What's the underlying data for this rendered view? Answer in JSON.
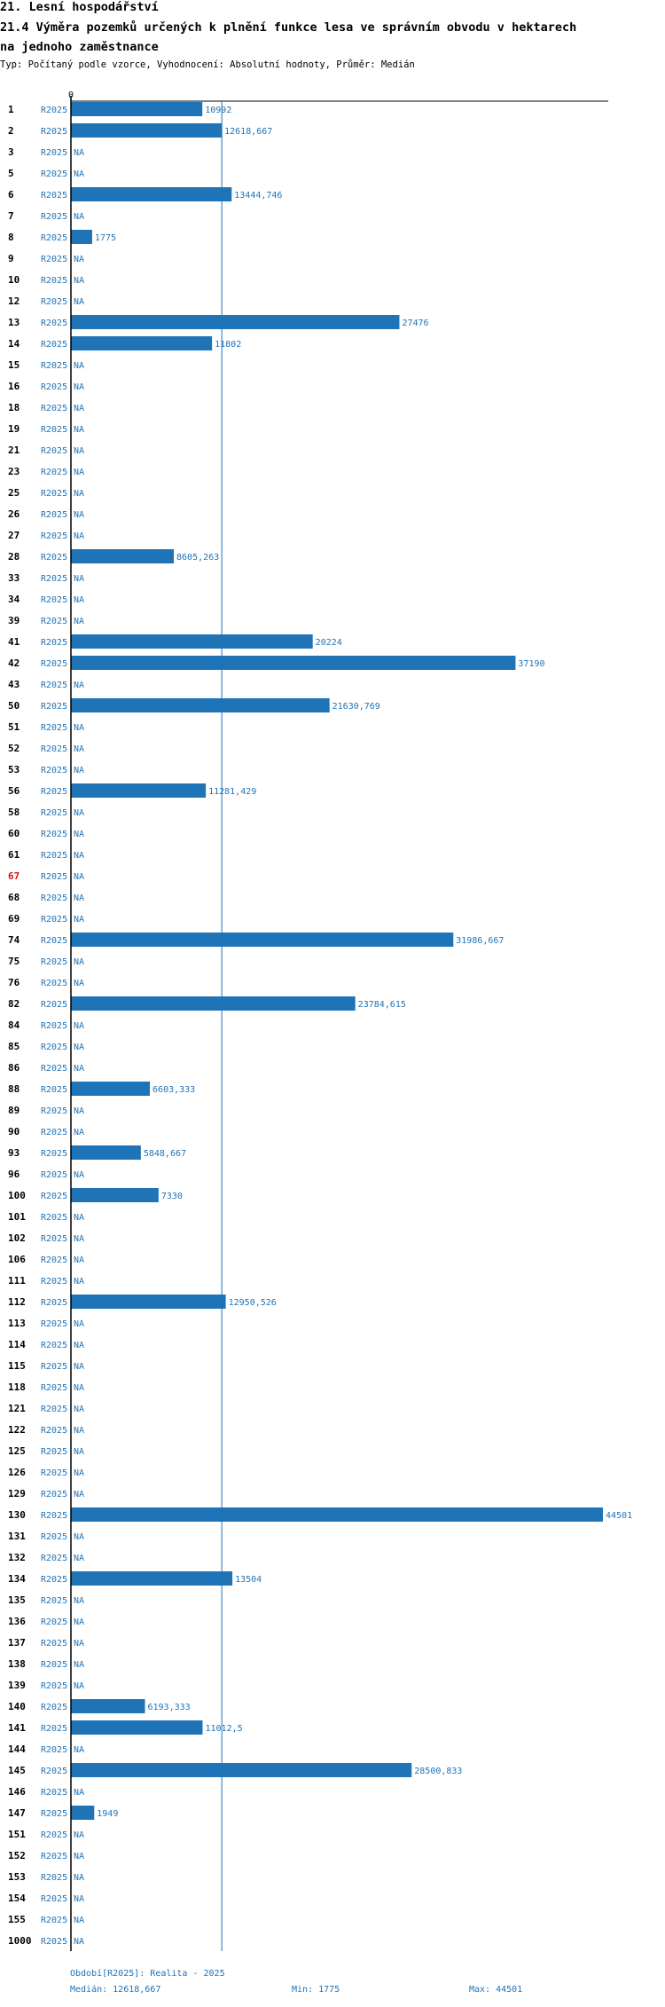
{
  "header": {
    "section": "21. Lesní hospodářství",
    "title_line1": "21.4 Výměra pozemků určených k plnění funkce lesa ve správním obvodu v hektarech",
    "title_line2": "na jednoho zaměstnance",
    "subtitle": "Typ: Počítaný podle vzorce, Vyhodnocení: Absolutní hodnoty, Průměr: Medián"
  },
  "colors": {
    "bar": "#1f73b7",
    "text": "#1f73b7",
    "highlight": "#dd1111",
    "axis": "#000000"
  },
  "chart_data": {
    "type": "bar",
    "orientation": "horizontal",
    "axis_zero_label": "0",
    "xlim": [
      0,
      44501
    ],
    "highlighted_category": "67",
    "series": [
      {
        "name": "R2025",
        "period_label": "R2025"
      }
    ],
    "categories": [
      "1",
      "2",
      "3",
      "5",
      "6",
      "7",
      "8",
      "9",
      "10",
      "12",
      "13",
      "14",
      "15",
      "16",
      "18",
      "19",
      "21",
      "23",
      "25",
      "26",
      "27",
      "28",
      "33",
      "34",
      "39",
      "41",
      "42",
      "43",
      "50",
      "51",
      "52",
      "53",
      "56",
      "58",
      "60",
      "61",
      "67",
      "68",
      "69",
      "74",
      "75",
      "76",
      "82",
      "84",
      "85",
      "86",
      "88",
      "89",
      "90",
      "93",
      "96",
      "100",
      "101",
      "102",
      "106",
      "111",
      "112",
      "113",
      "114",
      "115",
      "118",
      "121",
      "122",
      "125",
      "126",
      "129",
      "130",
      "131",
      "132",
      "134",
      "135",
      "136",
      "137",
      "138",
      "139",
      "140",
      "141",
      "144",
      "145",
      "146",
      "147",
      "151",
      "152",
      "153",
      "154",
      "155",
      "1000"
    ],
    "values": [
      10992,
      12618.667,
      null,
      null,
      13444.746,
      null,
      1775,
      null,
      null,
      null,
      27476,
      11802,
      null,
      null,
      null,
      null,
      null,
      null,
      null,
      null,
      null,
      8605.263,
      null,
      null,
      null,
      20224,
      37190,
      null,
      21630.769,
      null,
      null,
      null,
      11281.429,
      null,
      null,
      null,
      null,
      null,
      null,
      31986.667,
      null,
      null,
      23784.615,
      null,
      null,
      null,
      6603.333,
      null,
      null,
      5848.667,
      null,
      7330,
      null,
      null,
      null,
      null,
      12950.526,
      null,
      null,
      null,
      null,
      null,
      null,
      null,
      null,
      null,
      44501,
      null,
      null,
      13504,
      null,
      null,
      null,
      null,
      null,
      6193.333,
      11012.5,
      null,
      28500.833,
      null,
      1949,
      null,
      null,
      null,
      null,
      null,
      null
    ],
    "value_labels": [
      "10992",
      "12618,667",
      "NA",
      "NA",
      "13444,746",
      "NA",
      "1775",
      "NA",
      "NA",
      "NA",
      "27476",
      "11802",
      "NA",
      "NA",
      "NA",
      "NA",
      "NA",
      "NA",
      "NA",
      "NA",
      "NA",
      "8605,263",
      "NA",
      "NA",
      "NA",
      "20224",
      "37190",
      "NA",
      "21630,769",
      "NA",
      "NA",
      "NA",
      "11281,429",
      "NA",
      "NA",
      "NA",
      "NA",
      "NA",
      "NA",
      "31986,667",
      "NA",
      "NA",
      "23784,615",
      "NA",
      "NA",
      "NA",
      "6603,333",
      "NA",
      "NA",
      "5848,667",
      "NA",
      "7330",
      "NA",
      "NA",
      "NA",
      "NA",
      "12950,526",
      "NA",
      "NA",
      "NA",
      "NA",
      "NA",
      "NA",
      "NA",
      "NA",
      "NA",
      "44501",
      "NA",
      "NA",
      "13504",
      "NA",
      "NA",
      "NA",
      "NA",
      "NA",
      "6193,333",
      "11012,5",
      "NA",
      "28500,833",
      "NA",
      "1949",
      "NA",
      "NA",
      "NA",
      "NA",
      "NA",
      "NA"
    ],
    "median": 12618.667,
    "min": 1775,
    "max": 44501
  },
  "footer": {
    "period": "Období[R2025]: Realita - 2025",
    "median": "Medián: 12618,667",
    "min": "Min: 1775",
    "max": "Max: 44501"
  }
}
